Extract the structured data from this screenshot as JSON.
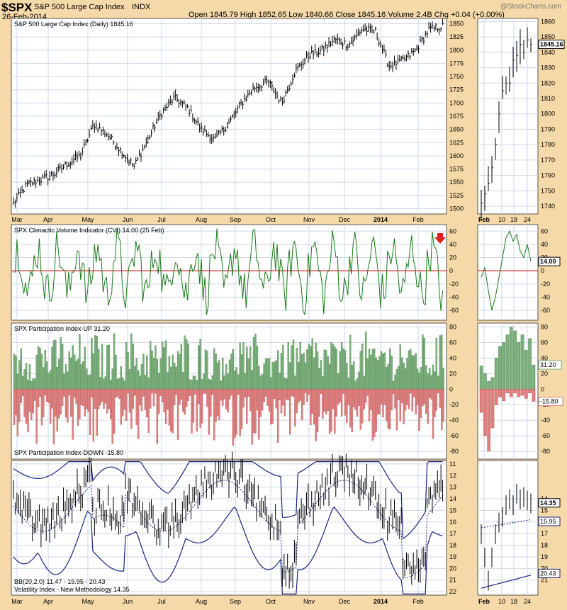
{
  "header": {
    "symbol": "$SPX",
    "name": "S&P 500 Large Cap Index",
    "exchange": "INDX",
    "date": "26-Feb-2014",
    "copyright": "@StockCharts.com",
    "stats": "Open 1845.79  High 1852.65  Low 1840.66  Close 1845.16  Volume 2.4B  Chg +0.04 (+0.00%)"
  },
  "chart_data": [
    {
      "type": "ohlc",
      "title": "S&P 500 Large Cap Index (Daily) 1845.16",
      "months": [
        "Mar",
        "Apr",
        "May",
        "Jun",
        "Jul",
        "Aug",
        "Sep",
        "Oct",
        "Nov",
        "Dec",
        "2014",
        "Feb"
      ],
      "close_anchors": [
        1510,
        1545,
        1555,
        1565,
        1585,
        1600,
        1660,
        1640,
        1610,
        1580,
        1630,
        1680,
        1710,
        1690,
        1650,
        1630,
        1660,
        1700,
        1730,
        1740,
        1700,
        1760,
        1790,
        1800,
        1820,
        1810,
        1840,
        1835,
        1770,
        1780,
        1800,
        1840,
        1845
      ],
      "ylim": [
        1490,
        1860
      ],
      "yticks": [
        1500,
        1525,
        1550,
        1575,
        1600,
        1625,
        1650,
        1675,
        1700,
        1725,
        1750,
        1775,
        1800,
        1825,
        1850
      ],
      "last_value": "1845.16",
      "zoom": {
        "xticks": [
          "Feb",
          "10",
          "18",
          "24"
        ],
        "ylim": [
          1735,
          1862
        ],
        "yticks": [
          1740,
          1750,
          1760,
          1770,
          1780,
          1790,
          1800,
          1810,
          1820,
          1830,
          1840,
          1850,
          1860
        ],
        "close": [
          1742,
          1748,
          1755,
          1765,
          1780,
          1800,
          1815,
          1820,
          1820,
          1835,
          1838,
          1845,
          1840,
          1848,
          1845
        ]
      }
    },
    {
      "type": "line",
      "title": "SPX Climactic Volume Indicator (CVI) 14.00 (25 Feb)",
      "ylim": [
        -75,
        70
      ],
      "yticks": [
        -60,
        -40,
        -20,
        0,
        20,
        40,
        60
      ],
      "zero_line_color": "#cc0000",
      "line_color": "#1a7a1a",
      "last_value": "14.00",
      "zoom": {
        "values": [
          -10,
          5,
          -30,
          -60,
          -40,
          -10,
          20,
          50,
          60,
          45,
          55,
          30,
          20,
          40,
          14
        ]
      }
    },
    {
      "type": "bar",
      "title_up": "SPX Participation Index-UP 31.20",
      "title_down": "SPX Participation Index-DOWN -15.80",
      "ylim": [
        -90,
        85
      ],
      "yticks": [
        -80,
        -60,
        -40,
        -20,
        0,
        20,
        40,
        60,
        80
      ],
      "up_color": "#7cb07c",
      "down_color": "#e08080",
      "last_up": "31.20",
      "last_down": "-15.80",
      "zoom": {
        "up": [
          30,
          20,
          10,
          15,
          40,
          55,
          60,
          70,
          80,
          75,
          60,
          70,
          50,
          65,
          31
        ],
        "down": [
          -30,
          -60,
          -80,
          -50,
          -20,
          -10,
          -15,
          -5,
          -10,
          -5,
          -10,
          -8,
          -12,
          -5,
          -16
        ]
      }
    },
    {
      "type": "ohlc",
      "title_bb": "BB(20,2.0) 11.47 - 15.95 - 20.43",
      "title": "Volatility Index - New Methodology 14.35",
      "inverted": true,
      "ylim": [
        10.7,
        22.3
      ],
      "yticks": [
        11,
        12,
        13,
        14,
        15,
        16,
        17,
        18,
        19,
        20,
        21,
        22
      ],
      "zoom_yticks": [
        14,
        15,
        16,
        17,
        18,
        19,
        20,
        21
      ],
      "band_color": "#1a237e",
      "last_value": "14.35",
      "mid_value": "15.95",
      "lower_value": "20.43",
      "zoom": {
        "close": [
          17,
          19,
          21,
          19,
          17,
          16,
          15.5,
          14.5,
          14,
          14.5,
          13.5,
          14,
          13.8,
          14.1,
          14.35
        ]
      }
    }
  ]
}
